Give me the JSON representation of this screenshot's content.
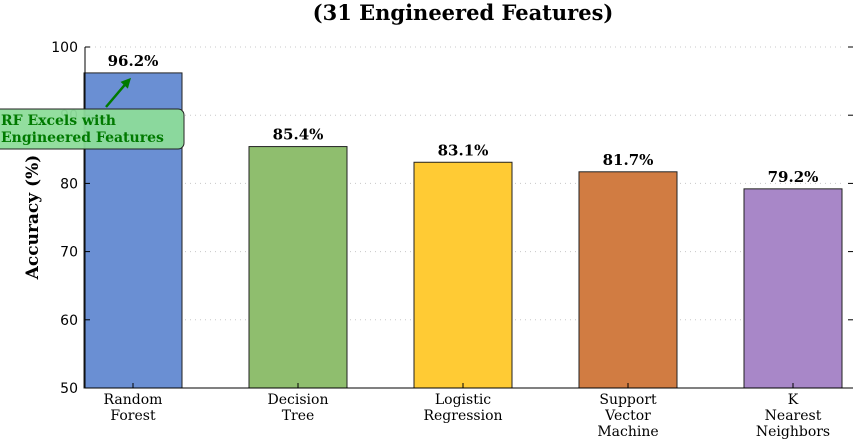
{
  "chart_data": {
    "type": "bar",
    "title": "(31 Engineered Features)",
    "ylabel": "Accuracy (%)",
    "xlabel": "",
    "ylim": [
      50,
      100
    ],
    "yticks": [
      50,
      60,
      70,
      80,
      90,
      100
    ],
    "grid": true,
    "categories": [
      [
        "Random",
        "Forest"
      ],
      [
        "Decision",
        "Tree"
      ],
      [
        "Logistic",
        "Regression"
      ],
      [
        "Support",
        "Vector",
        "Machine"
      ],
      [
        "K",
        "Nearest",
        "Neighbors"
      ]
    ],
    "values": [
      96.2,
      85.4,
      83.1,
      81.7,
      79.2
    ],
    "data_labels": [
      "96.2%",
      "85.4%",
      "83.1%",
      "81.7%",
      "79.2%"
    ],
    "colors": [
      "#6a8fd3",
      "#8fbe6e",
      "#ffcb34",
      "#d17c42",
      "#a887c8"
    ],
    "annotation": {
      "text": [
        "RF Excels with",
        "Engineered Features"
      ],
      "target_category": 0,
      "box_color": "#8ddc9a",
      "text_color": "#007a00",
      "arrow_color": "#007a00"
    }
  }
}
